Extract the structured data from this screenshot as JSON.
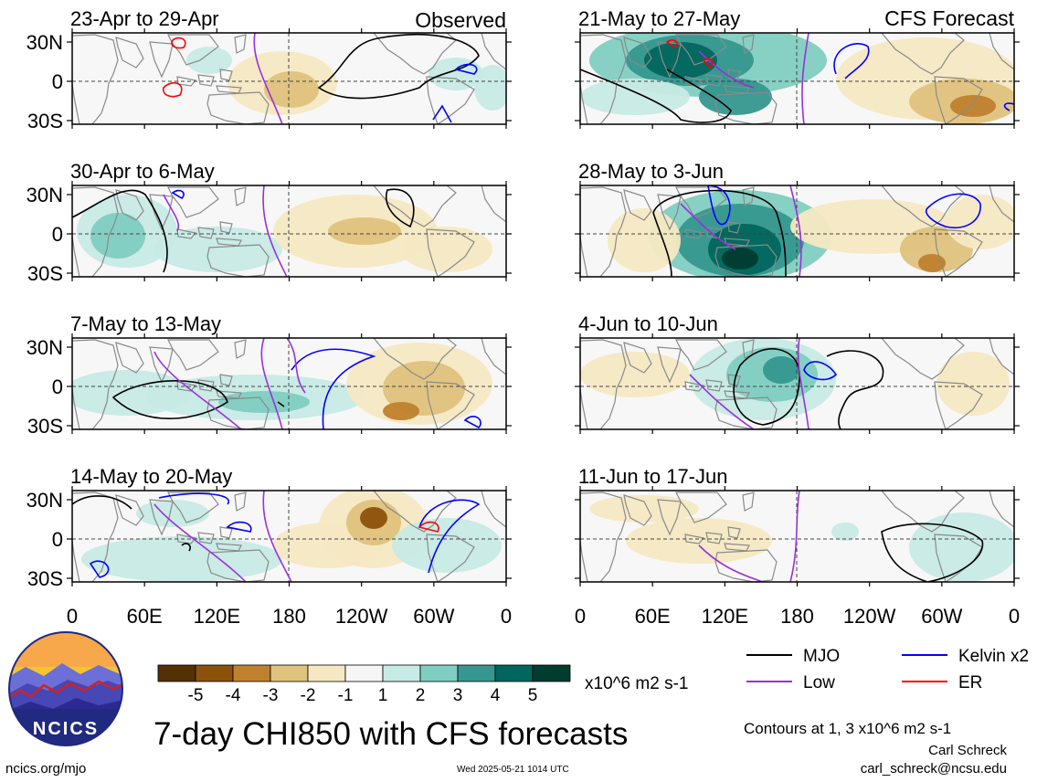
{
  "header": {
    "observed_label": "Observed",
    "forecast_label": "CFS Forecast"
  },
  "footer": {
    "title": "7-day CHI850 with CFS forecasts",
    "website": "ncics.org/mjo",
    "timestamp": "Wed 2025-05-21 1014 UTC",
    "contours_note": "Contours at 1, 3 x10^6 m2 s-1",
    "author": "Carl Schreck",
    "email": "carl_schreck@ncsu.edu",
    "logo_text": "NCICS"
  },
  "colors": {
    "ocean": "#f7f7f7",
    "land_outline": "#8a8a8a",
    "mjo": "#000000",
    "kelvin": "#0000ff",
    "low": "#9b30d9",
    "er": "#ff0000"
  },
  "chart_data": {
    "type": "heatmap",
    "title": "7-day CHI850 with CFS forecasts",
    "x_tick_labels": [
      "0",
      "60E",
      "120E",
      "180",
      "120W",
      "60W",
      "0"
    ],
    "y_tick_labels": [
      "30N",
      "0",
      "30S"
    ],
    "colorbar": {
      "unit_label": "x10^6 m2 s-1",
      "tick_labels": [
        "-5",
        "-4",
        "-3",
        "-2",
        "-1",
        "1",
        "2",
        "3",
        "4",
        "5"
      ],
      "colors": [
        "#543005",
        "#8c510a",
        "#bf812d",
        "#dfc27d",
        "#f6e8c3",
        "#f5f5f5",
        "#c7eae5",
        "#80cdc1",
        "#35978f",
        "#01665e",
        "#003c30"
      ]
    },
    "legend": [
      {
        "label": "MJO",
        "color": "#000000"
      },
      {
        "label": "Kelvin x2",
        "color": "#0000ff"
      },
      {
        "label": "Low",
        "color": "#9b30d9"
      },
      {
        "label": "ER",
        "color": "#ff0000"
      }
    ],
    "panels": [
      {
        "period": "23-Apr to 29-Apr",
        "source": "Observed"
      },
      {
        "period": "30-Apr to 6-May",
        "source": "Observed"
      },
      {
        "period": "7-May to 13-May",
        "source": "Observed"
      },
      {
        "period": "14-May to 20-May",
        "source": "Observed"
      },
      {
        "period": "21-May to 27-May",
        "source": "CFS Forecast"
      },
      {
        "period": "28-May to 3-Jun",
        "source": "CFS Forecast"
      },
      {
        "period": "4-Jun to 10-Jun",
        "source": "CFS Forecast"
      },
      {
        "period": "11-Jun to 17-Jun",
        "source": "CFS Forecast"
      }
    ]
  }
}
